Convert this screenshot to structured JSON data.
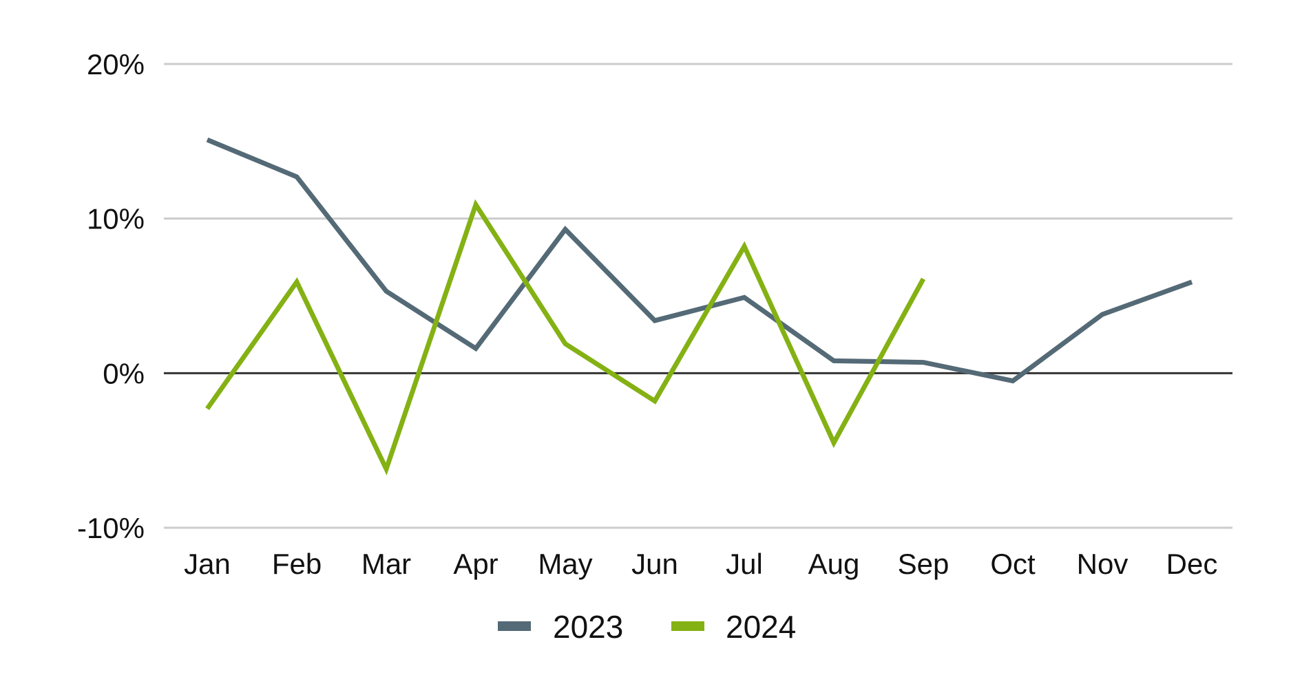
{
  "chart_data": {
    "type": "line",
    "categories": [
      "Jan",
      "Feb",
      "Mar",
      "Apr",
      "May",
      "Jun",
      "Jul",
      "Aug",
      "Sep",
      "Oct",
      "Nov",
      "Dec"
    ],
    "series": [
      {
        "name": "2023",
        "color": "#546a76",
        "values": [
          15.1,
          12.7,
          5.3,
          1.6,
          9.3,
          3.4,
          4.9,
          0.8,
          0.7,
          -0.5,
          3.8,
          5.9
        ]
      },
      {
        "name": "2024",
        "color": "#84b113",
        "values": [
          -2.3,
          5.9,
          -6.2,
          10.9,
          1.9,
          -1.8,
          8.2,
          -4.5,
          6.1,
          null,
          null,
          null
        ]
      }
    ],
    "ylim": [
      -10,
      20
    ],
    "yticks": [
      -10,
      0,
      10,
      20
    ],
    "ytick_labels": [
      "-10%",
      "0%",
      "10%",
      "20%"
    ],
    "grid": true,
    "legend_position": "bottom-center",
    "zero_line_color": "#333333",
    "grid_color": "#cccccc"
  }
}
